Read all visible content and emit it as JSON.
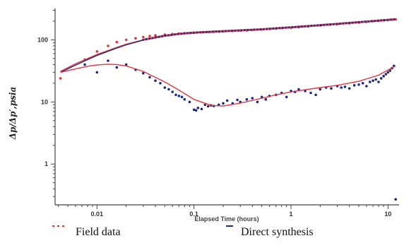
{
  "chart_data": {
    "type": "scatter",
    "xlabel": "Elapsed Time (hours)",
    "ylabel": "Δp/Δp′,psia",
    "x_scale": "log",
    "y_scale": "log",
    "xlim": [
      0.0037,
      13
    ],
    "ylim": [
      0.22,
      320
    ],
    "x_ticks": [
      0.01,
      0.1,
      1,
      10
    ],
    "x_tick_labels": [
      "0.01",
      "0.1",
      "1",
      "10"
    ],
    "y_ticks": [
      1,
      10,
      100
    ],
    "y_tick_labels": [
      "1",
      "10",
      "100"
    ],
    "grid": false,
    "legend_position": "bottom",
    "colors": {
      "field": "#e8323c",
      "synthesis": "#1b2a8a",
      "axis": "#444444"
    },
    "series": [
      {
        "name": "Field data",
        "kind": "points",
        "quantity": "pressure",
        "color": "#e8323c",
        "x": [
          0.0042,
          0.0075,
          0.01,
          0.013,
          0.016,
          0.02,
          0.025,
          0.03,
          0.035,
          0.04,
          0.05,
          0.06,
          0.07,
          0.08,
          0.09,
          0.1,
          0.12,
          0.14,
          0.16,
          0.18,
          0.2,
          0.25,
          0.3,
          0.35,
          0.4,
          0.5,
          0.6,
          0.7,
          0.8,
          1.0,
          1.2,
          1.5,
          2,
          2.5,
          3,
          4,
          5,
          6,
          7,
          8,
          9,
          10,
          11,
          12
        ],
        "y": [
          24,
          48,
          65,
          80,
          92,
          100,
          106,
          111,
          115,
          118,
          121,
          124,
          126,
          128,
          129,
          130,
          132,
          134,
          135,
          136,
          137,
          139,
          141,
          142,
          144,
          147,
          150,
          152,
          154,
          157,
          160,
          164,
          170,
          175,
          179,
          185,
          190,
          195,
          199,
          203,
          206,
          209,
          212,
          214
        ]
      },
      {
        "name": "",
        "kind": "points",
        "quantity": "derivative",
        "color": "#1b2a8a",
        "x": [
          0.0075,
          0.01,
          0.013,
          0.016,
          0.02,
          0.025,
          0.03,
          0.035,
          0.04,
          0.045,
          0.05,
          0.055,
          0.06,
          0.065,
          0.07,
          0.075,
          0.08,
          0.09,
          0.1,
          0.105,
          0.11,
          0.12,
          0.13,
          0.14,
          0.15,
          0.16,
          0.18,
          0.2,
          0.22,
          0.25,
          0.28,
          0.3,
          0.35,
          0.4,
          0.45,
          0.5,
          0.55,
          0.6,
          0.7,
          0.8,
          0.9,
          1.0,
          1.1,
          1.2,
          1.4,
          1.6,
          1.8,
          2.0,
          2.3,
          2.6,
          3.0,
          3.3,
          3.6,
          4.0,
          4.5,
          5,
          5.5,
          6,
          6.5,
          7,
          7.5,
          8,
          8.5,
          9,
          9.5,
          10,
          10.5,
          11,
          11.5,
          12
        ],
        "y": [
          40,
          30,
          46,
          36,
          40,
          33,
          29,
          25,
          22,
          20,
          17,
          16,
          14.5,
          13,
          12.5,
          12,
          11,
          10,
          7.5,
          7.3,
          8,
          7.7,
          9,
          8.5,
          8.8,
          8.6,
          9,
          9.5,
          10.5,
          9.5,
          10.8,
          10,
          11,
          11.5,
          10,
          12,
          11,
          12.5,
          13,
          14,
          12,
          15,
          14.5,
          16,
          15,
          14,
          13,
          16,
          17,
          16.5,
          18,
          17,
          17.5,
          16.5,
          18.5,
          19,
          20,
          18,
          21,
          22,
          23,
          21,
          24,
          26,
          28,
          30,
          32,
          35,
          38,
          0.27
        ]
      },
      {
        "name": "",
        "kind": "line",
        "quantity": "pressure-model",
        "color": "#e8323c",
        "x": [
          0.0042,
          0.006,
          0.008,
          0.01,
          0.015,
          0.02,
          0.03,
          0.05,
          0.07,
          0.1,
          0.2,
          0.5,
          1,
          2,
          5,
          10,
          12
        ],
        "y": [
          31,
          41,
          50,
          58,
          73,
          85,
          100,
          116,
          124,
          130,
          137,
          146,
          157,
          170,
          190,
          208,
          213
        ]
      },
      {
        "name": "Direct synthesis",
        "kind": "line",
        "quantity": "pressure-model",
        "color": "#1b2a8a",
        "x": [
          0.0042,
          0.006,
          0.008,
          0.01,
          0.015,
          0.02,
          0.03,
          0.05,
          0.07,
          0.1,
          0.2,
          0.5,
          1,
          2,
          5,
          10,
          12
        ],
        "y": [
          30,
          39,
          48,
          56,
          71,
          83,
          99,
          115,
          123,
          129,
          136,
          146,
          157,
          170,
          190,
          207,
          212
        ]
      },
      {
        "name": "",
        "kind": "line",
        "quantity": "derivative-model",
        "color": "#e8323c",
        "x": [
          0.0042,
          0.006,
          0.008,
          0.01,
          0.013,
          0.016,
          0.02,
          0.03,
          0.05,
          0.07,
          0.1,
          0.15,
          0.2,
          0.3,
          0.5,
          0.7,
          1,
          1.5,
          2,
          3,
          5,
          8,
          12
        ],
        "y": [
          30,
          34,
          37.5,
          39.5,
          40.5,
          40,
          38,
          31,
          21,
          15.5,
          11,
          8.8,
          8.6,
          9.6,
          11.5,
          13,
          14.5,
          16,
          17,
          18.5,
          21.5,
          27,
          38
        ]
      }
    ]
  },
  "legend": {
    "items": [
      {
        "label": "Field data",
        "color": "#e8323c",
        "style": "dash-dots"
      },
      {
        "label": "Direct synthesis",
        "color": "#1b2a8a",
        "style": "dash"
      }
    ]
  }
}
